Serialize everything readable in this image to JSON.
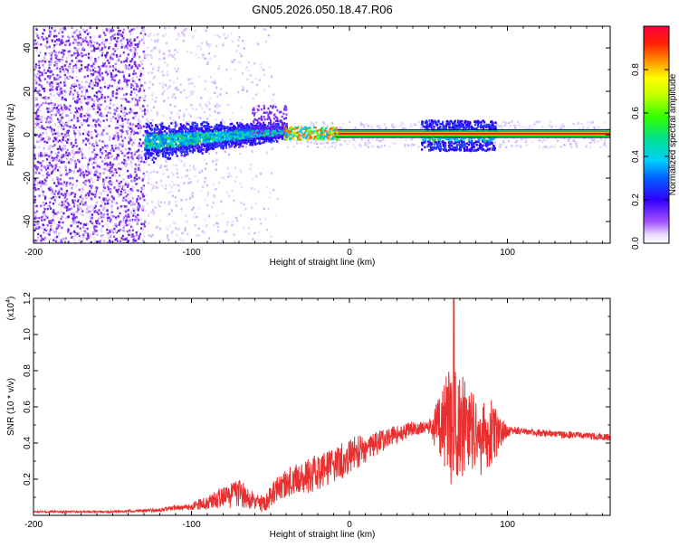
{
  "title": "GN05.2026.050.18.47.R06",
  "top_panel": {
    "xlabel": "Height of straight line (km)",
    "ylabel": "Frequency (Hz)",
    "colorbar_label": "Normalized spectral amplitude"
  },
  "bottom_panel": {
    "xlabel": "Height of straight line (km)",
    "ylabel": "SNR (10 * v/v)",
    "scale_label": "(x10",
    "scale_exp": "4",
    "scale_close": ")"
  },
  "colors": {
    "snr_line": "#e83030",
    "band_red": "#ff0000",
    "band_green": "#00e000",
    "scatter_purple": "#7a2cf0"
  },
  "chart_data": [
    {
      "type": "heatmap",
      "title": "GN05.2026.050.18.47.R06",
      "xlabel": "Height of straight line (km)",
      "ylabel": "Frequency (Hz)",
      "xlim": [
        -200,
        165
      ],
      "ylim": [
        -50,
        50
      ],
      "xticks": [
        -200,
        -100,
        0,
        100
      ],
      "xtick_labels": [
        "-200",
        "-100",
        "0",
        "100"
      ],
      "yticks": [
        -40,
        -20,
        0,
        20,
        40
      ],
      "ytick_labels": [
        "-40",
        "-20",
        "0",
        "20",
        "40"
      ],
      "colorbar": {
        "label": "Normalized spectral amplitude",
        "range": [
          0,
          1
        ],
        "ticks": [
          0.0,
          0.2,
          0.4,
          0.6,
          0.8
        ],
        "tick_labels": [
          "0.0",
          "0.2",
          "0.4",
          "0.6",
          "0.8"
        ]
      },
      "features": {
        "strong_band_center_hz": 0.5,
        "strong_band_x_range": [
          -40,
          165
        ],
        "noise_region_x_range": [
          -200,
          -130
        ],
        "broad_region_x_range": [
          -130,
          -40
        ],
        "burst_x_range": [
          45,
          92
        ]
      }
    },
    {
      "type": "line",
      "xlabel": "Height of straight line (km)",
      "ylabel": "SNR (10 * v/v)",
      "y_multiplier_label": "(x10^4)",
      "xlim": [
        -200,
        165
      ],
      "ylim": [
        0,
        1.2
      ],
      "xticks": [
        -200,
        -100,
        0,
        100
      ],
      "xtick_labels": [
        "-200",
        "-100",
        "0",
        "100"
      ],
      "yticks": [
        0.2,
        0.4,
        0.6,
        0.8,
        1.0,
        1.2
      ],
      "ytick_labels": [
        "0.2",
        "0.4",
        "0.6",
        "0.8",
        "1.0",
        "1.2"
      ],
      "envelope": {
        "x": [
          -200,
          -150,
          -120,
          -100,
          -90,
          -80,
          -70,
          -60,
          -55,
          -45,
          -35,
          -25,
          -15,
          -5,
          0,
          10,
          20,
          30,
          40,
          50,
          60,
          65,
          70,
          75,
          80,
          90,
          100,
          105,
          115,
          130,
          150,
          165
        ],
        "mean": [
          0.02,
          0.02,
          0.03,
          0.05,
          0.07,
          0.1,
          0.12,
          0.08,
          0.06,
          0.15,
          0.2,
          0.22,
          0.26,
          0.3,
          0.33,
          0.37,
          0.41,
          0.45,
          0.48,
          0.49,
          0.5,
          0.5,
          0.5,
          0.46,
          0.45,
          0.44,
          0.46,
          0.47,
          0.46,
          0.45,
          0.44,
          0.43
        ],
        "spread": [
          0.005,
          0.005,
          0.01,
          0.02,
          0.04,
          0.06,
          0.08,
          0.05,
          0.05,
          0.07,
          0.09,
          0.1,
          0.1,
          0.1,
          0.1,
          0.08,
          0.06,
          0.05,
          0.04,
          0.03,
          0.25,
          0.35,
          0.3,
          0.25,
          0.25,
          0.2,
          0.03,
          0.02,
          0.02,
          0.02,
          0.02,
          0.02
        ],
        "peak": {
          "x": 66,
          "y": 1.2
        }
      }
    }
  ]
}
